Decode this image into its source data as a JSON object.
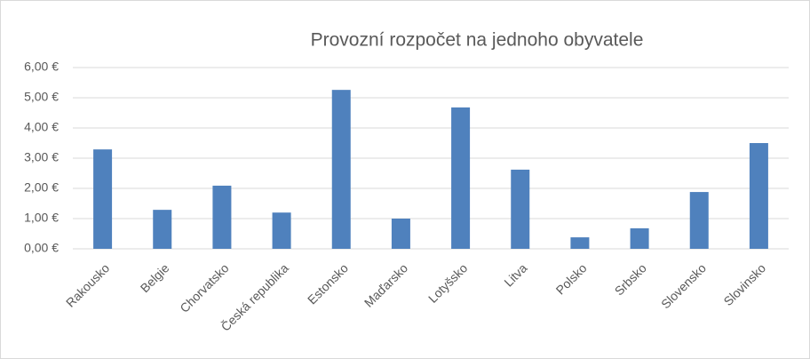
{
  "chart_data": {
    "type": "bar",
    "title": "Provozní rozpočet na jednoho obyvatele",
    "categories": [
      "Rakousko",
      "Belgie",
      "Chorvatsko",
      "Česká republika",
      "Estonsko",
      "Maďarsko",
      "Lotyšsko",
      "Litva",
      "Polsko",
      "Srbsko",
      "Slovensko",
      "Slovinsko"
    ],
    "values": [
      3.29,
      1.29,
      2.09,
      1.2,
      5.26,
      1.0,
      4.68,
      2.62,
      0.38,
      0.68,
      1.88,
      3.5
    ],
    "color": "#4f81bd",
    "ylim": [
      0,
      6
    ],
    "yticks": [
      {
        "value": 0,
        "label": "0,00 €"
      },
      {
        "value": 1,
        "label": "1,00 €"
      },
      {
        "value": 2,
        "label": "2,00 €"
      },
      {
        "value": 3,
        "label": "3,00 €"
      },
      {
        "value": 4,
        "label": "4,00 €"
      },
      {
        "value": 5,
        "label": "5,00 €"
      },
      {
        "value": 6,
        "label": "6,00 €"
      }
    ],
    "grid": true
  }
}
